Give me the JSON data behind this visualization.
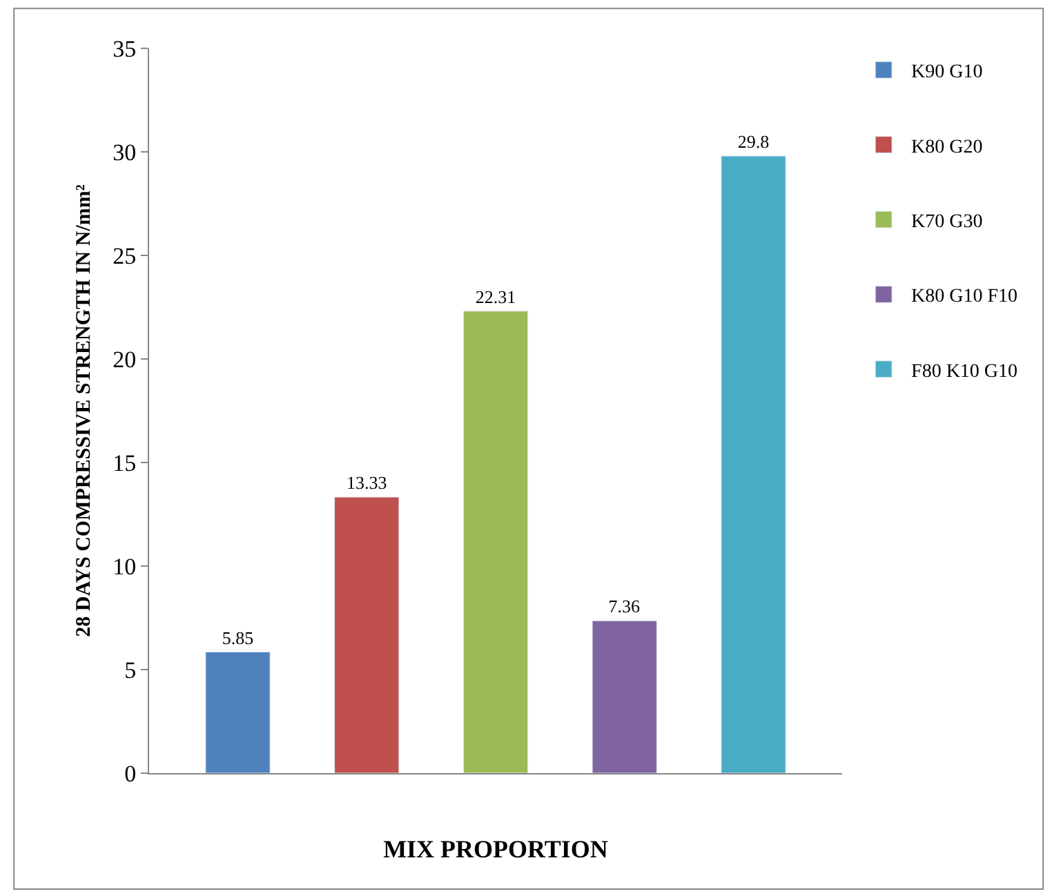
{
  "chart_data": {
    "type": "bar",
    "xlabel": "MIX PROPORTION",
    "ylabel": "28 DAYS COMPRESSIVE STRENGTH IN N/mm²",
    "categories": [
      null
    ],
    "series": [
      {
        "name": "K90 G10",
        "color": "#4f81bd",
        "values": [
          5.85
        ]
      },
      {
        "name": "K80 G20",
        "color": "#c0504d",
        "values": [
          13.33
        ]
      },
      {
        "name": "K70 G30",
        "color": "#9bbb59",
        "values": [
          22.31
        ]
      },
      {
        "name": "K80 G10 F10",
        "color": "#8064a2",
        "values": [
          7.36
        ]
      },
      {
        "name": "F80 K10 G10",
        "color": "#4bacc6",
        "values": [
          29.8
        ]
      }
    ],
    "ylim": [
      0,
      35
    ],
    "yticks": [
      0,
      5,
      10,
      15,
      20,
      25,
      30,
      35
    ],
    "data_labels": true,
    "legend": "right"
  }
}
